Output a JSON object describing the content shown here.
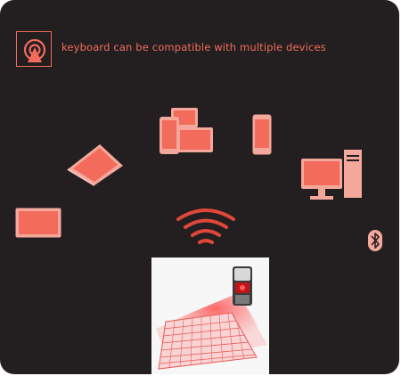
{
  "header": {
    "logo_icon": "wireless-broadcast-icon",
    "text": "keyboard can be compatible with multiple devices"
  },
  "devices": [
    {
      "name": "tablet-phone-group-icon"
    },
    {
      "name": "smartphone-icon"
    },
    {
      "name": "laptop-icon"
    },
    {
      "name": "desktop-computer-icon"
    },
    {
      "name": "tablet-landscape-icon"
    },
    {
      "name": "wireless-signal-icon"
    },
    {
      "name": "bluetooth-icon"
    }
  ],
  "product": {
    "image": "laser-projection-keyboard-photo"
  },
  "colors": {
    "background": "#231f20",
    "accent": "#f26b5b",
    "light": "#f4a79b"
  }
}
